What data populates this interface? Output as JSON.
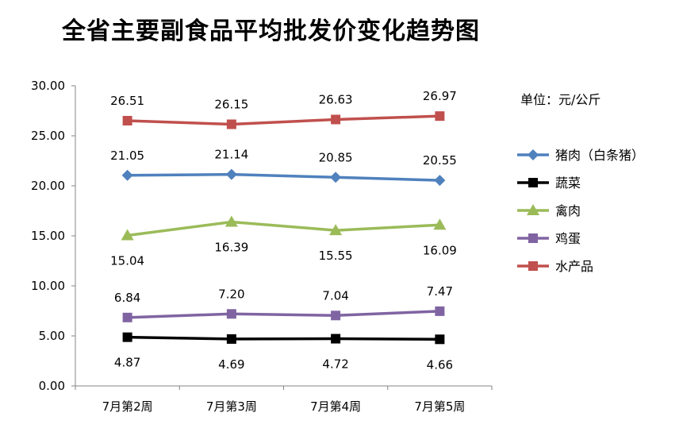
{
  "chart_data": {
    "type": "line",
    "title": "全省主要副食品平均批发价变化趋势图",
    "unit": "单位：元/公斤",
    "categories": [
      "7月第2周",
      "7月第3周",
      "7月第4周",
      "7月第5周"
    ],
    "ylim": [
      0,
      30
    ],
    "yticks": [
      "0.00",
      "5.00",
      "10.00",
      "15.00",
      "20.00",
      "25.00",
      "30.00"
    ],
    "grid": false,
    "legend_position": "right",
    "series": [
      {
        "name": "猪肉（白条猪）",
        "color": "#4F81BD",
        "marker": "diamond",
        "values": [
          21.05,
          21.14,
          20.85,
          20.55
        ],
        "labels": [
          "21.05",
          "21.14",
          "20.85",
          "20.55"
        ],
        "label_pos": "above"
      },
      {
        "name": "蔬菜",
        "color": "#000000",
        "marker": "square",
        "values": [
          4.87,
          4.69,
          4.72,
          4.66
        ],
        "labels": [
          "4.87",
          "4.69",
          "4.72",
          "4.66"
        ],
        "label_pos": "below"
      },
      {
        "name": "禽肉",
        "color": "#9BBB59",
        "marker": "triangle",
        "values": [
          15.04,
          16.39,
          15.55,
          16.09
        ],
        "labels": [
          "15.04",
          "16.39",
          "15.55",
          "16.09"
        ],
        "label_pos": "below"
      },
      {
        "name": "鸡蛋",
        "color": "#8064A2",
        "marker": "square",
        "values": [
          6.84,
          7.2,
          7.04,
          7.47
        ],
        "labels": [
          "6.84",
          "7.20",
          "7.04",
          "7.47"
        ],
        "label_pos": "above"
      },
      {
        "name": "水产品",
        "color": "#C0504D",
        "marker": "square",
        "values": [
          26.51,
          26.15,
          26.63,
          26.97
        ],
        "labels": [
          "26.51",
          "26.15",
          "26.63",
          "26.97"
        ],
        "label_pos": "above"
      }
    ]
  }
}
